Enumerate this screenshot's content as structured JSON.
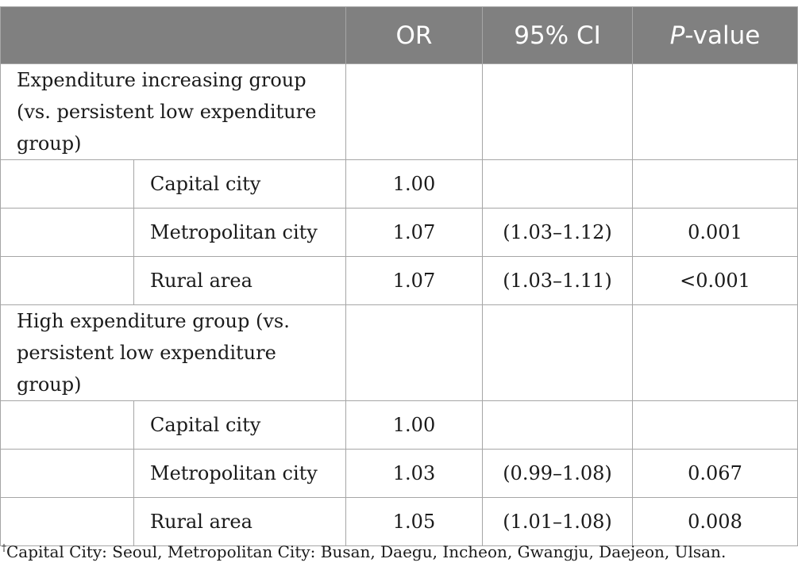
{
  "header": {
    "col_or": "OR",
    "col_ci": "95% CI",
    "col_p_italic": "P",
    "col_p_rest": "-value"
  },
  "groups": [
    {
      "label": "Expenditure increasing group (vs. persistent low expenditure group)",
      "rows": [
        {
          "area": "Capital city",
          "or": "1.00",
          "ci": "",
          "p": ""
        },
        {
          "area": "Metropolitan city",
          "or": "1.07",
          "ci": "(1.03–1.12)",
          "p": "0.001"
        },
        {
          "area": "Rural area",
          "or": "1.07",
          "ci": "(1.03–1.11)",
          "p": "<0.001"
        }
      ]
    },
    {
      "label": "High expenditure group (vs. persistent low expenditure group)",
      "rows": [
        {
          "area": "Capital city",
          "or": "1.00",
          "ci": "",
          "p": ""
        },
        {
          "area": "Metropolitan city",
          "or": "1.03",
          "ci": "(0.99–1.08)",
          "p": "0.067"
        },
        {
          "area": "Rural area",
          "or": "1.05",
          "ci": "(1.01–1.08)",
          "p": "0.008"
        }
      ]
    }
  ],
  "footnote": {
    "mark": "†",
    "text": "Capital City: Seoul, Metropolitan City: Busan, Daegu, Incheon, Gwangju, Daejeon, Ulsan."
  }
}
